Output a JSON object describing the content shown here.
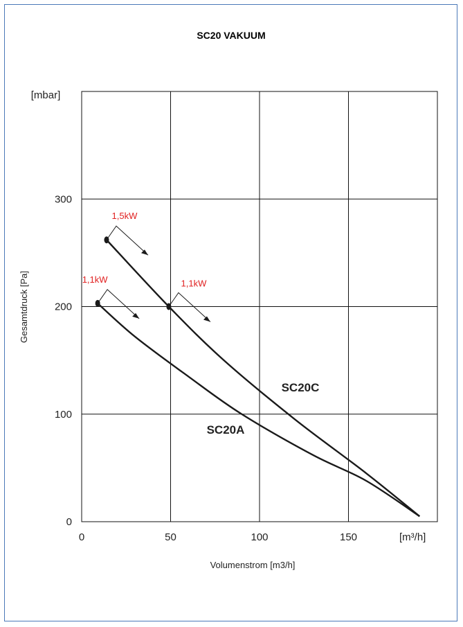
{
  "chart_data": {
    "type": "line",
    "title": "SC20 VAKUUM",
    "xlabel": "Volumenstrom [m3/h]",
    "ylabel": "Gesamtdruck [Pa]",
    "x_unit": "[m³/h]",
    "y_unit": "[mbar]",
    "xlim": [
      0,
      200
    ],
    "ylim": [
      0,
      400
    ],
    "x_ticks": [
      "0",
      "50",
      "100",
      "150"
    ],
    "y_ticks": [
      "0",
      "100",
      "200",
      "300"
    ],
    "grid": true,
    "series": [
      {
        "name": "SC20C",
        "x": [
          14,
          49,
          80,
          120,
          160,
          190
        ],
        "y": [
          262,
          200,
          150,
          95,
          45,
          5
        ]
      },
      {
        "name": "SC20A",
        "x": [
          9,
          30,
          60,
          90,
          130,
          160,
          190
        ],
        "y": [
          203,
          172,
          135,
          100,
          62,
          38,
          5
        ]
      }
    ],
    "annotations": [
      {
        "text": "1,5kW",
        "x": 14,
        "y": 262
      },
      {
        "text": "1,1kW",
        "x": 9,
        "y": 203
      },
      {
        "text": "1,1kW",
        "x": 49,
        "y": 200
      }
    ],
    "annotation_color": "#e02020",
    "line_color": "#1a1a1a"
  }
}
